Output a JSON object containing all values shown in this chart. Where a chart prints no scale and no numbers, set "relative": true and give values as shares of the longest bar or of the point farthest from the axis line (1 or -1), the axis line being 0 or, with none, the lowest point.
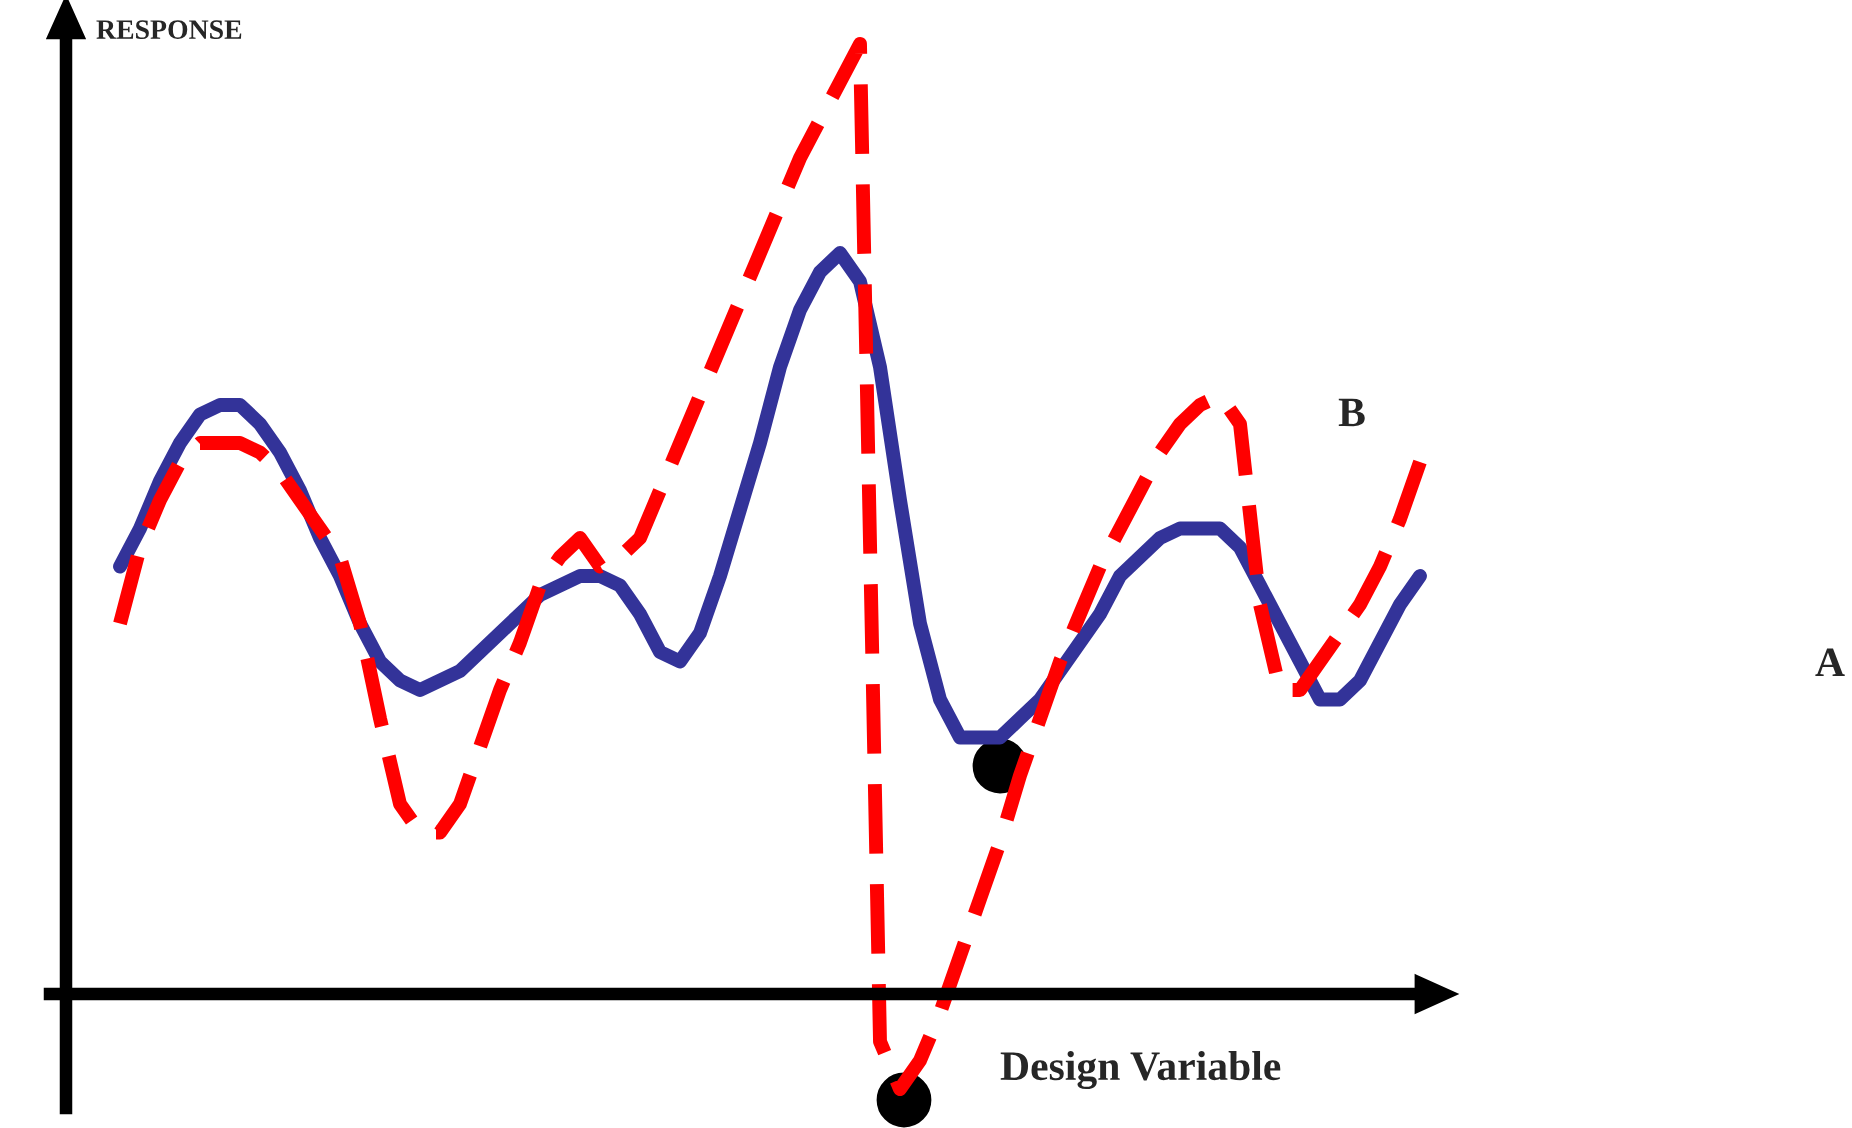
{
  "chart_data": {
    "type": "line",
    "relative": true,
    "xlabel": "Design Variable",
    "ylabel": "RESPONSE",
    "annotations": [
      "B",
      "A"
    ],
    "legend": false,
    "marker": "none",
    "categories": [
      null,
      null,
      null,
      null,
      null,
      null,
      null,
      null,
      null,
      null,
      null,
      null,
      null,
      null,
      null,
      null,
      null,
      null,
      null,
      null,
      null,
      null,
      null,
      null,
      null,
      null,
      null,
      null,
      null,
      null,
      null,
      null,
      null,
      null,
      null,
      null,
      null,
      null,
      null,
      null,
      null,
      null,
      null,
      null,
      null,
      null,
      null,
      null,
      null,
      null,
      null,
      null,
      null,
      null,
      null,
      null,
      null,
      null,
      null,
      null,
      null,
      null,
      null,
      null,
      null,
      null
    ],
    "series": [
      {
        "color": "#333399",
        "line_style": "solid",
        "values": [
          0.45,
          0.49,
          0.54,
          0.58,
          0.61,
          0.62,
          0.62,
          0.6,
          0.57,
          0.53,
          0.48,
          0.44,
          0.39,
          0.35,
          0.33,
          0.32,
          0.33,
          0.34,
          0.36,
          0.38,
          0.4,
          0.42,
          0.43,
          0.44,
          0.44,
          0.43,
          0.4,
          0.36,
          0.35,
          0.38,
          0.44,
          0.51,
          0.58,
          0.66,
          0.72,
          0.76,
          0.78,
          0.75,
          0.66,
          0.52,
          0.39,
          0.31,
          0.27,
          0.27,
          0.27,
          0.29,
          0.31,
          0.34,
          0.37,
          0.4,
          0.44,
          0.46,
          0.48,
          0.49,
          0.49,
          0.49,
          0.47,
          0.43,
          0.39,
          0.35,
          0.31,
          0.31,
          0.33,
          0.37,
          0.41,
          0.44
        ]
      },
      {
        "color": "#ff0000",
        "line_style": "dashed",
        "values": [
          0.39,
          0.47,
          0.52,
          0.56,
          0.58,
          0.58,
          0.58,
          0.57,
          0.55,
          0.52,
          0.49,
          0.46,
          0.39,
          0.29,
          0.2,
          0.17,
          0.17,
          0.2,
          0.26,
          0.32,
          0.37,
          0.43,
          0.46,
          0.48,
          0.45,
          0.46,
          0.48,
          0.53,
          0.58,
          0.63,
          0.68,
          0.73,
          0.78,
          0.83,
          0.88,
          0.92,
          0.96,
          1.0,
          -0.05,
          -0.1,
          -0.07,
          -0.02,
          0.04,
          0.1,
          0.16,
          0.23,
          0.29,
          0.35,
          0.4,
          0.45,
          0.49,
          0.53,
          0.57,
          0.6,
          0.62,
          0.63,
          0.6,
          0.41,
          0.32,
          0.32,
          0.35,
          0.38,
          0.41,
          0.45,
          0.5,
          0.56
        ]
      }
    ]
  }
}
